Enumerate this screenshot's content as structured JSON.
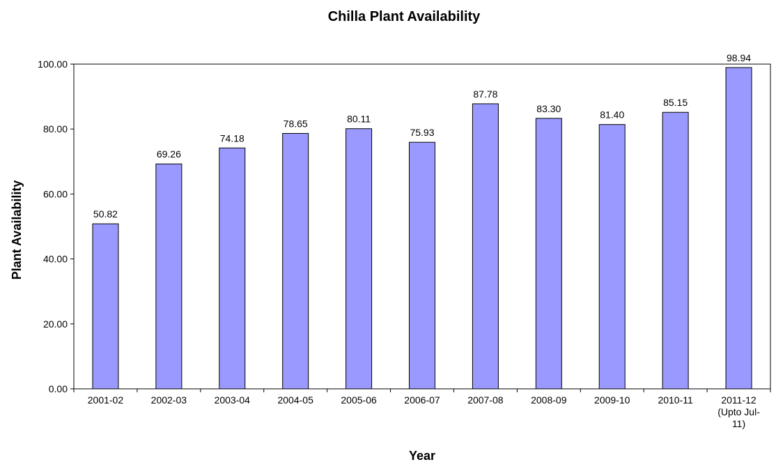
{
  "chart_data": {
    "type": "bar",
    "title": "Chilla Plant Availability",
    "xlabel": "Year",
    "ylabel": "Plant Availability",
    "categories": [
      "2001-02",
      "2002-03",
      "2003-04",
      "2004-05",
      "2005-06",
      "2006-07",
      "2007-08",
      "2008-09",
      "2009-10",
      "2010-11",
      [
        "2011-12",
        "(Upto Jul-",
        "11)"
      ]
    ],
    "values": [
      50.82,
      69.26,
      74.18,
      78.65,
      80.11,
      75.93,
      87.78,
      83.3,
      81.4,
      85.15,
      98.94
    ],
    "value_labels": [
      "50.82",
      "69.26",
      "74.18",
      "78.65",
      "80.11",
      "75.93",
      "87.78",
      "83.30",
      "81.40",
      "85.15",
      "98.94"
    ],
    "ylim": [
      0,
      100
    ],
    "yticks": [
      "0.00",
      "20.00",
      "40.00",
      "60.00",
      "80.00",
      "100.00"
    ],
    "bar_color": "#9999ff",
    "grid": false,
    "legend": "none"
  }
}
